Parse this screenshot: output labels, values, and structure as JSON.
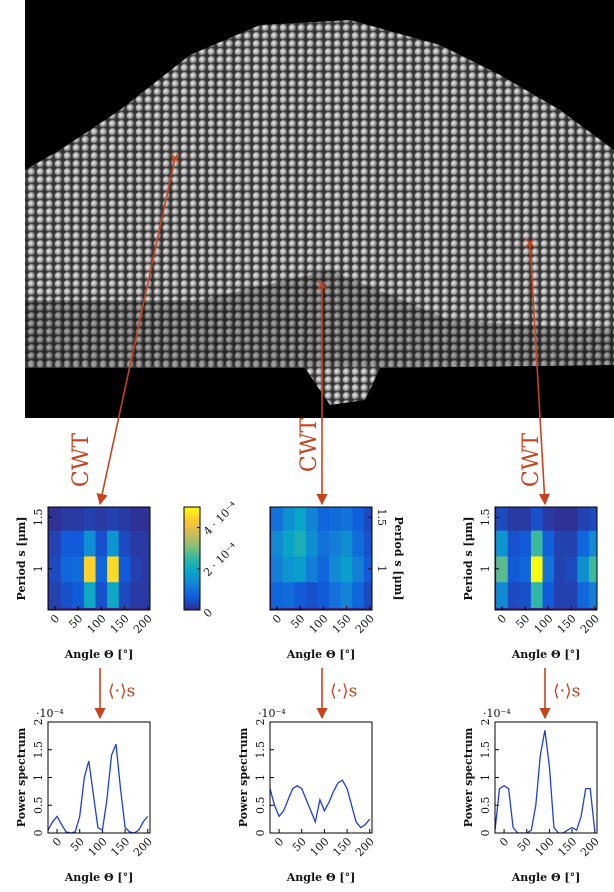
{
  "annotations": {
    "transform_label": "CWT",
    "average_label": "⟨·⟩s"
  },
  "chart_data": [
    {
      "type": "heatmap",
      "x_label": "Angle Θ [°]",
      "y_label": "Period s [μm]",
      "xlim": [
        -15,
        205
      ],
      "xticks": [
        0,
        50,
        100,
        150,
        200
      ],
      "ylim": [
        0.6,
        1.6
      ],
      "yticks": [
        1,
        1.5
      ],
      "angles": [
        0,
        25,
        50,
        75,
        100,
        125,
        150,
        175,
        200
      ],
      "periods": [
        0.75,
        1,
        1.25,
        1.5
      ],
      "values": [
        [
          3e-05,
          5e-05,
          6e-05,
          0.0002,
          5e-05,
          0.0002,
          4e-05,
          2e-05,
          2e-05
        ],
        [
          4e-05,
          8e-05,
          9e-05,
          0.00045,
          8e-05,
          0.00046,
          6e-05,
          3e-05,
          2e-05
        ],
        [
          3e-05,
          6e-05,
          6e-05,
          0.00015,
          5e-05,
          0.00016,
          4e-05,
          2e-05,
          2e-05
        ],
        [
          1e-05,
          2e-05,
          2e-05,
          3e-05,
          2e-05,
          3e-05,
          2e-05,
          1e-05,
          1e-05
        ]
      ],
      "colorbar": {
        "lim": [
          0,
          0.0005
        ],
        "ticks": [
          {
            "value": 0,
            "label": "0"
          },
          {
            "value": 0.0002,
            "label": "2 · 10⁻⁴"
          },
          {
            "value": 0.0004,
            "label": "4 · 10⁻⁴"
          }
        ]
      }
    },
    {
      "type": "heatmap",
      "x_label": "Angle Θ [°]",
      "y_label": "Period s [μm]",
      "xlim": [
        -15,
        205
      ],
      "xticks": [
        0,
        50,
        100,
        150,
        200
      ],
      "ylim": [
        0.6,
        1.6
      ],
      "yticks": [
        1,
        1.5
      ],
      "angles": [
        0,
        25,
        50,
        75,
        100,
        125,
        150,
        175,
        200
      ],
      "periods": [
        0.75,
        1,
        1.25,
        1.5
      ],
      "values": [
        [
          8e-05,
          9e-05,
          6e-05,
          5e-05,
          6e-05,
          0.0001,
          0.00013,
          8e-05,
          4e-05
        ],
        [
          0.00012,
          0.00016,
          0.00018,
          0.00012,
          8e-05,
          0.00014,
          0.00018,
          0.00012,
          6e-05
        ],
        [
          0.00014,
          0.00019,
          0.00022,
          0.00015,
          0.0001,
          0.00012,
          0.00015,
          9e-05,
          5e-05
        ],
        [
          0.0001,
          0.00015,
          0.00019,
          0.00013,
          8e-05,
          9e-05,
          0.0001,
          7e-05,
          4e-05
        ]
      ]
    },
    {
      "type": "heatmap",
      "x_label": "Angle Θ [°]",
      "y_label": "Period s [μm]",
      "xlim": [
        -15,
        205
      ],
      "xticks": [
        0,
        50,
        100,
        150,
        200
      ],
      "ylim": [
        0.6,
        1.6
      ],
      "yticks": [
        1,
        1.5
      ],
      "angles": [
        0,
        25,
        50,
        75,
        100,
        125,
        150,
        175,
        200
      ],
      "periods": [
        0.75,
        1,
        1.25,
        1.5
      ],
      "values": [
        [
          0.00014,
          4e-05,
          5e-05,
          0.00025,
          6e-05,
          3e-05,
          3e-05,
          8e-05,
          0.00012
        ],
        [
          0.00028,
          6e-05,
          8e-05,
          0.0005,
          0.0001,
          3e-05,
          4e-05,
          0.00015,
          0.00026
        ],
        [
          0.00016,
          5e-05,
          6e-05,
          0.00026,
          7e-05,
          3e-05,
          3e-05,
          8e-05,
          0.00014
        ],
        [
          4e-05,
          2e-05,
          2e-05,
          5e-05,
          2e-05,
          1e-05,
          1e-05,
          3e-05,
          4e-05
        ]
      ]
    },
    {
      "type": "line",
      "x_label": "Angle Θ [°]",
      "y_label": "Power spectrum",
      "y_scale_label": "·10⁻⁴",
      "color": "#1f3fd6",
      "xlim": [
        -20,
        205
      ],
      "xticks": [
        0,
        50,
        100,
        150,
        200
      ],
      "ylim": [
        0,
        2
      ],
      "yticks": [
        0,
        0.5,
        1,
        1.5,
        2
      ],
      "x": [
        -20,
        -10,
        0,
        10,
        20,
        30,
        40,
        50,
        60,
        70,
        80,
        90,
        100,
        110,
        120,
        130,
        140,
        150,
        160,
        170,
        180,
        190,
        200
      ],
      "values": [
        0.05,
        0.2,
        0.3,
        0.15,
        0.02,
        0,
        0.02,
        0.3,
        1.0,
        1.3,
        0.7,
        0.1,
        0.05,
        0.6,
        1.4,
        1.6,
        0.8,
        0.1,
        0.02,
        0,
        0.05,
        0.2,
        0.3
      ]
    },
    {
      "type": "line",
      "x_label": "Angle Θ [°]",
      "y_label": "Power spectrum",
      "y_scale_label": "·10⁻⁴",
      "color": "#1f3fd6",
      "xlim": [
        -20,
        205
      ],
      "xticks": [
        0,
        50,
        100,
        150,
        200
      ],
      "ylim": [
        0,
        2
      ],
      "yticks": [
        0,
        0.5,
        1,
        1.5,
        2
      ],
      "x": [
        -20,
        -10,
        0,
        10,
        20,
        30,
        40,
        50,
        60,
        70,
        80,
        90,
        100,
        110,
        120,
        130,
        140,
        150,
        160,
        170,
        180,
        190,
        200
      ],
      "values": [
        0.8,
        0.5,
        0.3,
        0.4,
        0.6,
        0.8,
        0.85,
        0.8,
        0.6,
        0.4,
        0.2,
        0.6,
        0.4,
        0.55,
        0.75,
        0.9,
        0.95,
        0.8,
        0.5,
        0.2,
        0.1,
        0.15,
        0.25
      ]
    },
    {
      "type": "line",
      "x_label": "Angle Θ [°]",
      "y_label": "Power spectrum",
      "y_scale_label": "·10⁻⁴",
      "color": "#1f3fd6",
      "xlim": [
        -20,
        205
      ],
      "xticks": [
        0,
        50,
        100,
        150,
        200
      ],
      "ylim": [
        0,
        2
      ],
      "yticks": [
        0,
        0.5,
        1,
        1.5,
        2
      ],
      "x": [
        -20,
        -10,
        0,
        10,
        20,
        30,
        40,
        50,
        60,
        70,
        80,
        90,
        100,
        110,
        120,
        130,
        140,
        150,
        160,
        170,
        180,
        190,
        200
      ],
      "values": [
        0.05,
        0.8,
        0.85,
        0.8,
        0.1,
        0,
        0,
        0,
        0.05,
        0.5,
        1.4,
        1.85,
        1.2,
        0.1,
        0,
        0,
        0.05,
        0.1,
        0.05,
        0.3,
        0.8,
        0.8,
        0.05
      ]
    }
  ]
}
